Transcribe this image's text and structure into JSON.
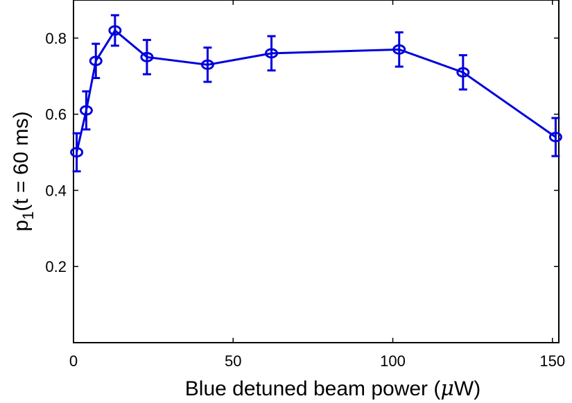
{
  "chart_data": {
    "type": "line",
    "xlabel": "Blue detuned beam power (μW)",
    "xlabel_parts": {
      "before": "Blue detuned beam power (",
      "mu": "μ",
      "after": "W)"
    },
    "ylabel": "p1(t = 60 ms)",
    "ylabel_parts": {
      "p": "p",
      "sub": "1",
      "rest": "(t = 60 ms)"
    },
    "xlim": [
      0,
      152
    ],
    "ylim": [
      0,
      0.9
    ],
    "x_ticks": [
      0,
      50,
      100,
      150
    ],
    "x_tick_labels": [
      "0",
      "50",
      "100",
      "150"
    ],
    "y_ticks": [
      0.2,
      0.4,
      0.6,
      0.8
    ],
    "y_tick_labels": [
      "0.2",
      "0.4",
      "0.6",
      "0.8"
    ],
    "grid": false,
    "series": [
      {
        "color": "#0000dd",
        "marker": "circle",
        "x": [
          1,
          4,
          7,
          13,
          23,
          42,
          62,
          102,
          122,
          151
        ],
        "y": [
          0.5,
          0.61,
          0.74,
          0.82,
          0.75,
          0.73,
          0.76,
          0.77,
          0.71,
          0.54
        ],
        "err": [
          0.05,
          0.05,
          0.045,
          0.04,
          0.045,
          0.045,
          0.045,
          0.045,
          0.045,
          0.05
        ]
      }
    ]
  }
}
